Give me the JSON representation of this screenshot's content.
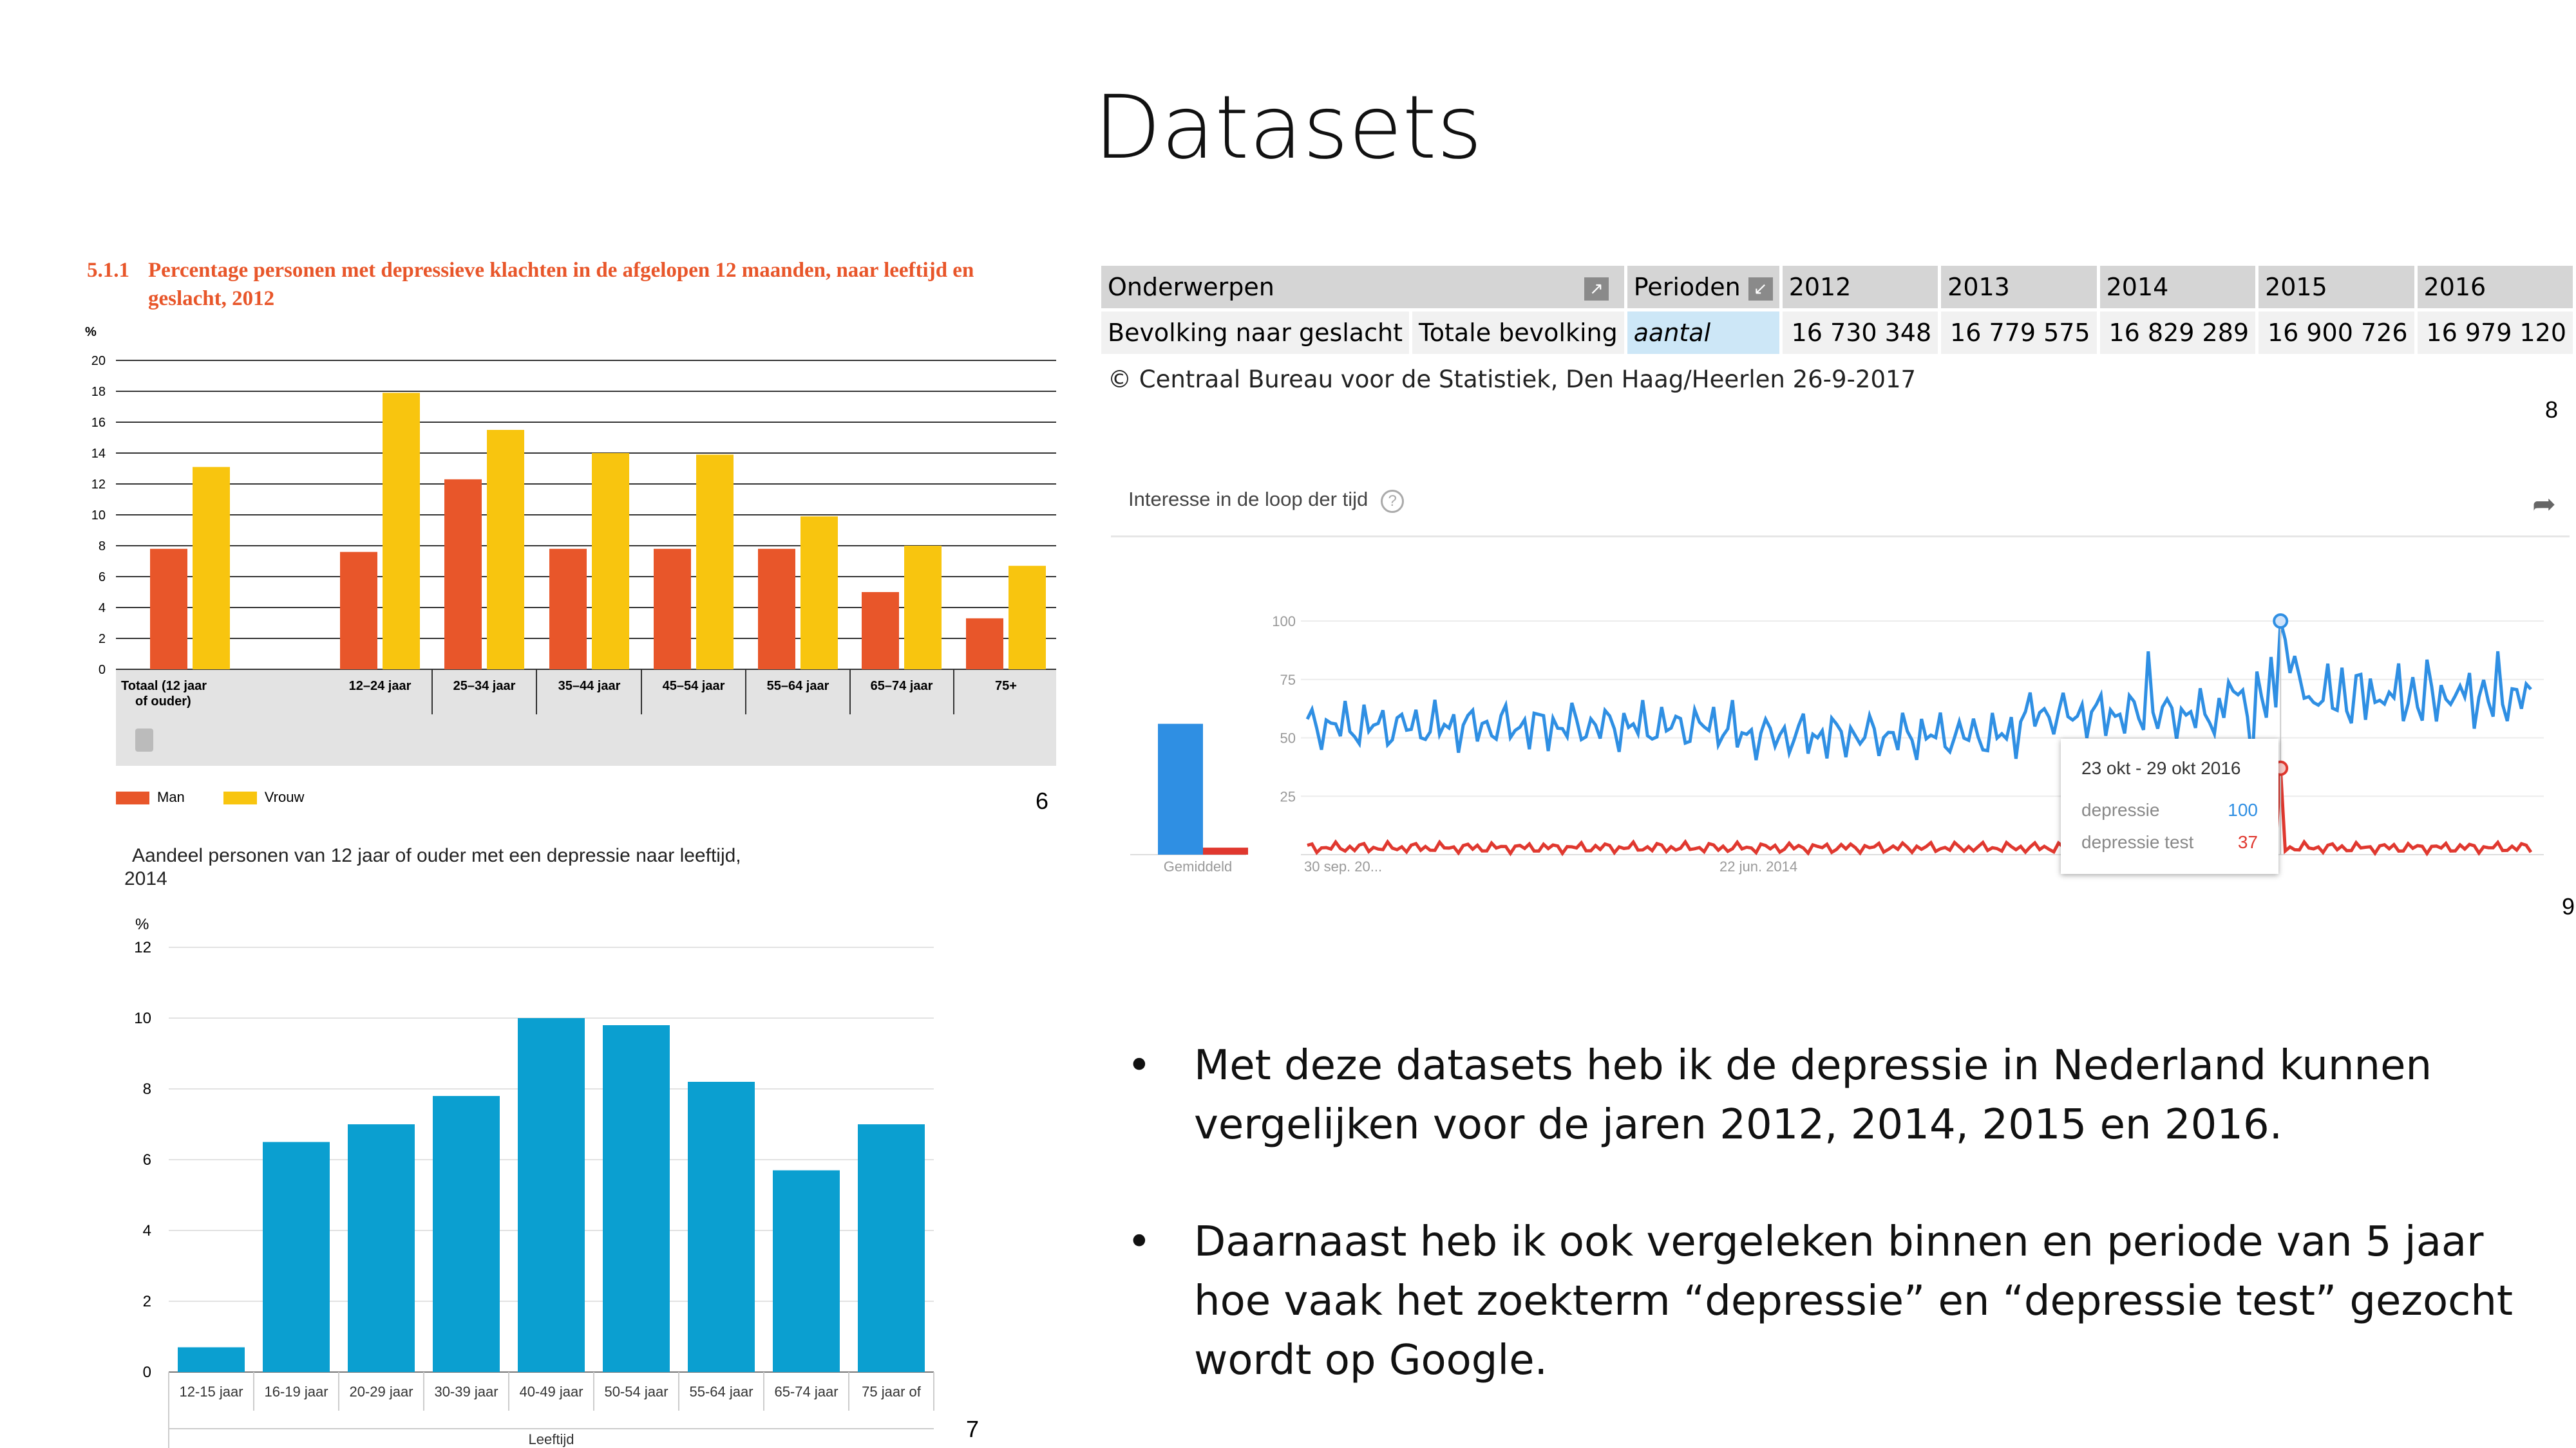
{
  "slide": {
    "title": "Datasets"
  },
  "source_numbers": {
    "c6": "6",
    "c7": "7",
    "c8": "8",
    "c9": "9"
  },
  "chart6": {
    "heading_number": "5.1.1",
    "heading_line1": "Percentage personen met depressieve klachten in de afgelopen 12 maanden, naar leeftijd en",
    "heading_line2": "geslacht, 2012",
    "legend": [
      "Man",
      "Vrouw"
    ],
    "colors": {
      "man": "#e8562a",
      "vrouw": "#f8c50f"
    }
  },
  "chart7": {
    "title_line1": "Aandeel personen van 12 jaar of ouder met een depressie naar leeftijd,",
    "title_line2": "2014",
    "color": "#0b9fd0"
  },
  "chart_data": [
    {
      "type": "bar",
      "ylabel": "%",
      "ylim": [
        0,
        20
      ],
      "yticks": [
        0,
        2,
        4,
        6,
        8,
        10,
        12,
        14,
        16,
        18,
        20
      ],
      "categories": [
        "Totaal (12 jaar of ouder)",
        "12–24 jaar",
        "25–34 jaar",
        "35–44 jaar",
        "45–54 jaar",
        "55–64 jaar",
        "65–74 jaar",
        "75+"
      ],
      "series": [
        {
          "name": "Man",
          "values": [
            7.8,
            7.6,
            12.3,
            7.8,
            7.8,
            7.8,
            5.0,
            3.3
          ]
        },
        {
          "name": "Vrouw",
          "values": [
            13.1,
            17.9,
            15.5,
            14.0,
            13.9,
            9.9,
            8.0,
            6.7
          ]
        }
      ],
      "grid": true,
      "legend": "bottom-left"
    },
    {
      "type": "bar",
      "ylabel": "%",
      "xlabel": "Leeftijd",
      "ylim": [
        0,
        12
      ],
      "yticks": [
        0,
        2,
        4,
        6,
        8,
        10,
        12
      ],
      "categories": [
        "12-15 jaar",
        "16-19 jaar",
        "20-29 jaar",
        "30-39 jaar",
        "40-49 jaar",
        "50-54 jaar",
        "55-64 jaar",
        "65-74 jaar",
        "75 jaar of"
      ],
      "values": [
        0.7,
        6.5,
        7.0,
        7.8,
        10.0,
        9.8,
        8.2,
        5.7,
        7.0
      ],
      "grid": true
    },
    {
      "type": "line",
      "title": "Interesse in de loop der tijd",
      "ylim": [
        0,
        100
      ],
      "yticks": [
        25,
        50,
        75,
        100
      ],
      "x_ticks": [
        "30 sep. 20...",
        "22 jun. 2014"
      ],
      "series": [
        {
          "name": "depressie",
          "color": "#2f8fe3",
          "average": 56
        },
        {
          "name": "depressie test",
          "color": "#e0382f",
          "average": 3
        }
      ],
      "average_label": "Gemiddeld",
      "tooltip": {
        "date": "23 okt - 29 okt 2016",
        "rows": [
          {
            "name": "depressie",
            "value": "100"
          },
          {
            "name": "depressie test",
            "value": "37"
          }
        ]
      }
    }
  ],
  "cbs_table": {
    "header": {
      "onderwerpen": "Onderwerpen",
      "perioden": "Perioden",
      "years": [
        "2012",
        "2013",
        "2014",
        "2015",
        "2016"
      ]
    },
    "row": {
      "col1": "Bevolking naar geslacht",
      "col2": "Totale bevolking",
      "unit": "aantal",
      "values": [
        "16 730 348",
        "16 779 575",
        "16 829 289",
        "16 900 726",
        "16 979 120"
      ]
    },
    "source": "© Centraal Bureau voor de Statistiek, Den Haag/Heerlen 26-9-2017"
  },
  "bullets": [
    "Met deze datasets heb ik de depressie in Nederland kunnen vergelijken voor de jaren 2012, 2014, 2015 en 2016.",
    "Daarnaast heb ik ook vergeleken binnen en periode van 5 jaar hoe vaak het zoekterm “depressie” en “depressie test” gezocht wordt op Google."
  ]
}
